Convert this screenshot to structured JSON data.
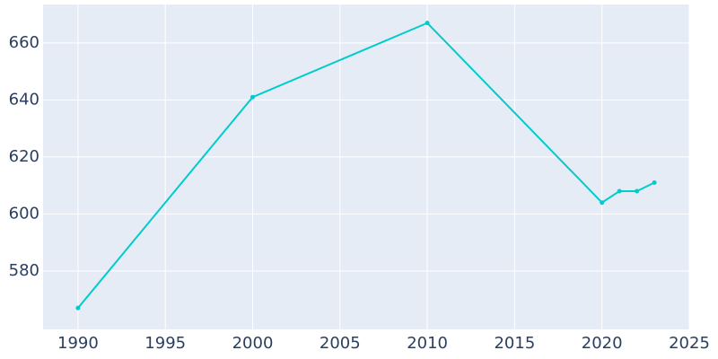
{
  "chart_data": {
    "type": "line",
    "x": [
      1990,
      2000,
      2010,
      2020,
      2021,
      2022,
      2023
    ],
    "series": [
      {
        "color": "#00cccc",
        "values": [
          567,
          641,
          667,
          604,
          608,
          608,
          611
        ]
      }
    ],
    "xlim": [
      1988,
      2025
    ],
    "xticks": [
      1990,
      1995,
      2000,
      2005,
      2010,
      2015,
      2020,
      2025
    ],
    "ylim": [
      559.5,
      673.5
    ],
    "yticks": [
      580,
      600,
      620,
      640,
      660
    ],
    "grid": true
  }
}
